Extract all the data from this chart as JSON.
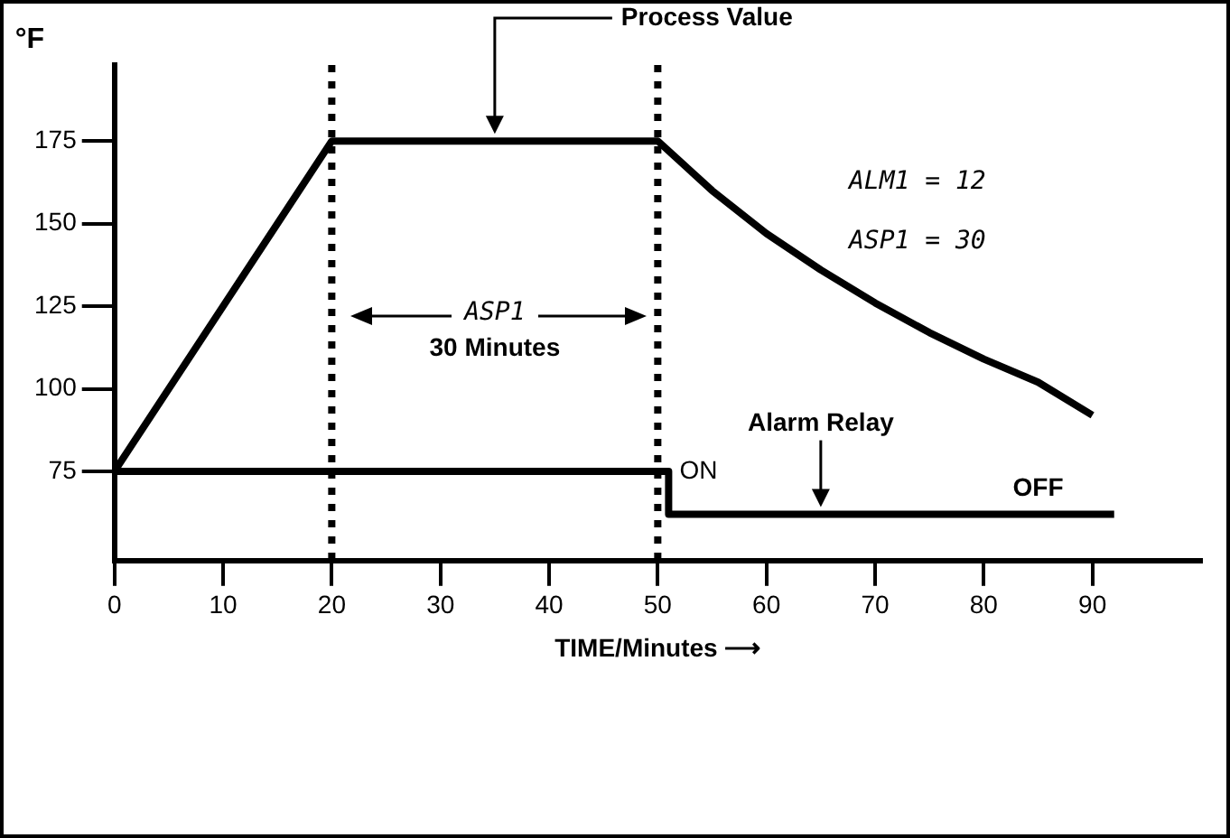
{
  "chart_data": {
    "type": "line",
    "ylabel": "°F",
    "xlabel": "TIME/Minutes ⟶",
    "xlim": [
      0,
      100
    ],
    "xticks": [
      0,
      10,
      20,
      30,
      40,
      50,
      60,
      70,
      80,
      90
    ],
    "ylim": [
      48,
      198
    ],
    "yticks": [
      75,
      100,
      125,
      150,
      175
    ],
    "grid": false,
    "legend": false,
    "marker": "none",
    "line_style": "solid",
    "series": [
      {
        "color": "#000000",
        "x": [
          0,
          20,
          50,
          55,
          60,
          65,
          70,
          75,
          80,
          85,
          90
        ],
        "values": [
          75,
          175,
          175,
          160,
          147,
          136,
          126,
          117,
          109,
          102,
          92
        ]
      },
      {
        "type": "step",
        "color": "#000000",
        "x": [
          0,
          51,
          92
        ],
        "values": [
          75,
          62,
          62
        ]
      }
    ],
    "ref_lines": [
      {
        "axis": "x",
        "value": 20,
        "color": "#000000",
        "line_style": "dotted"
      },
      {
        "axis": "x",
        "value": 50,
        "color": "#000000",
        "line_style": "dotted"
      }
    ],
    "annotations": [
      {
        "text": "Process Value",
        "x": 35,
        "y": 175
      },
      "ASP1",
      "30 Minutes",
      "ON",
      {
        "text": "Alarm Relay",
        "x": 65,
        "y": 62
      },
      {
        "text": "OFF",
        "x": 85,
        "y": 62
      },
      "ALM1 = 12",
      "ASP1 = 30"
    ]
  }
}
